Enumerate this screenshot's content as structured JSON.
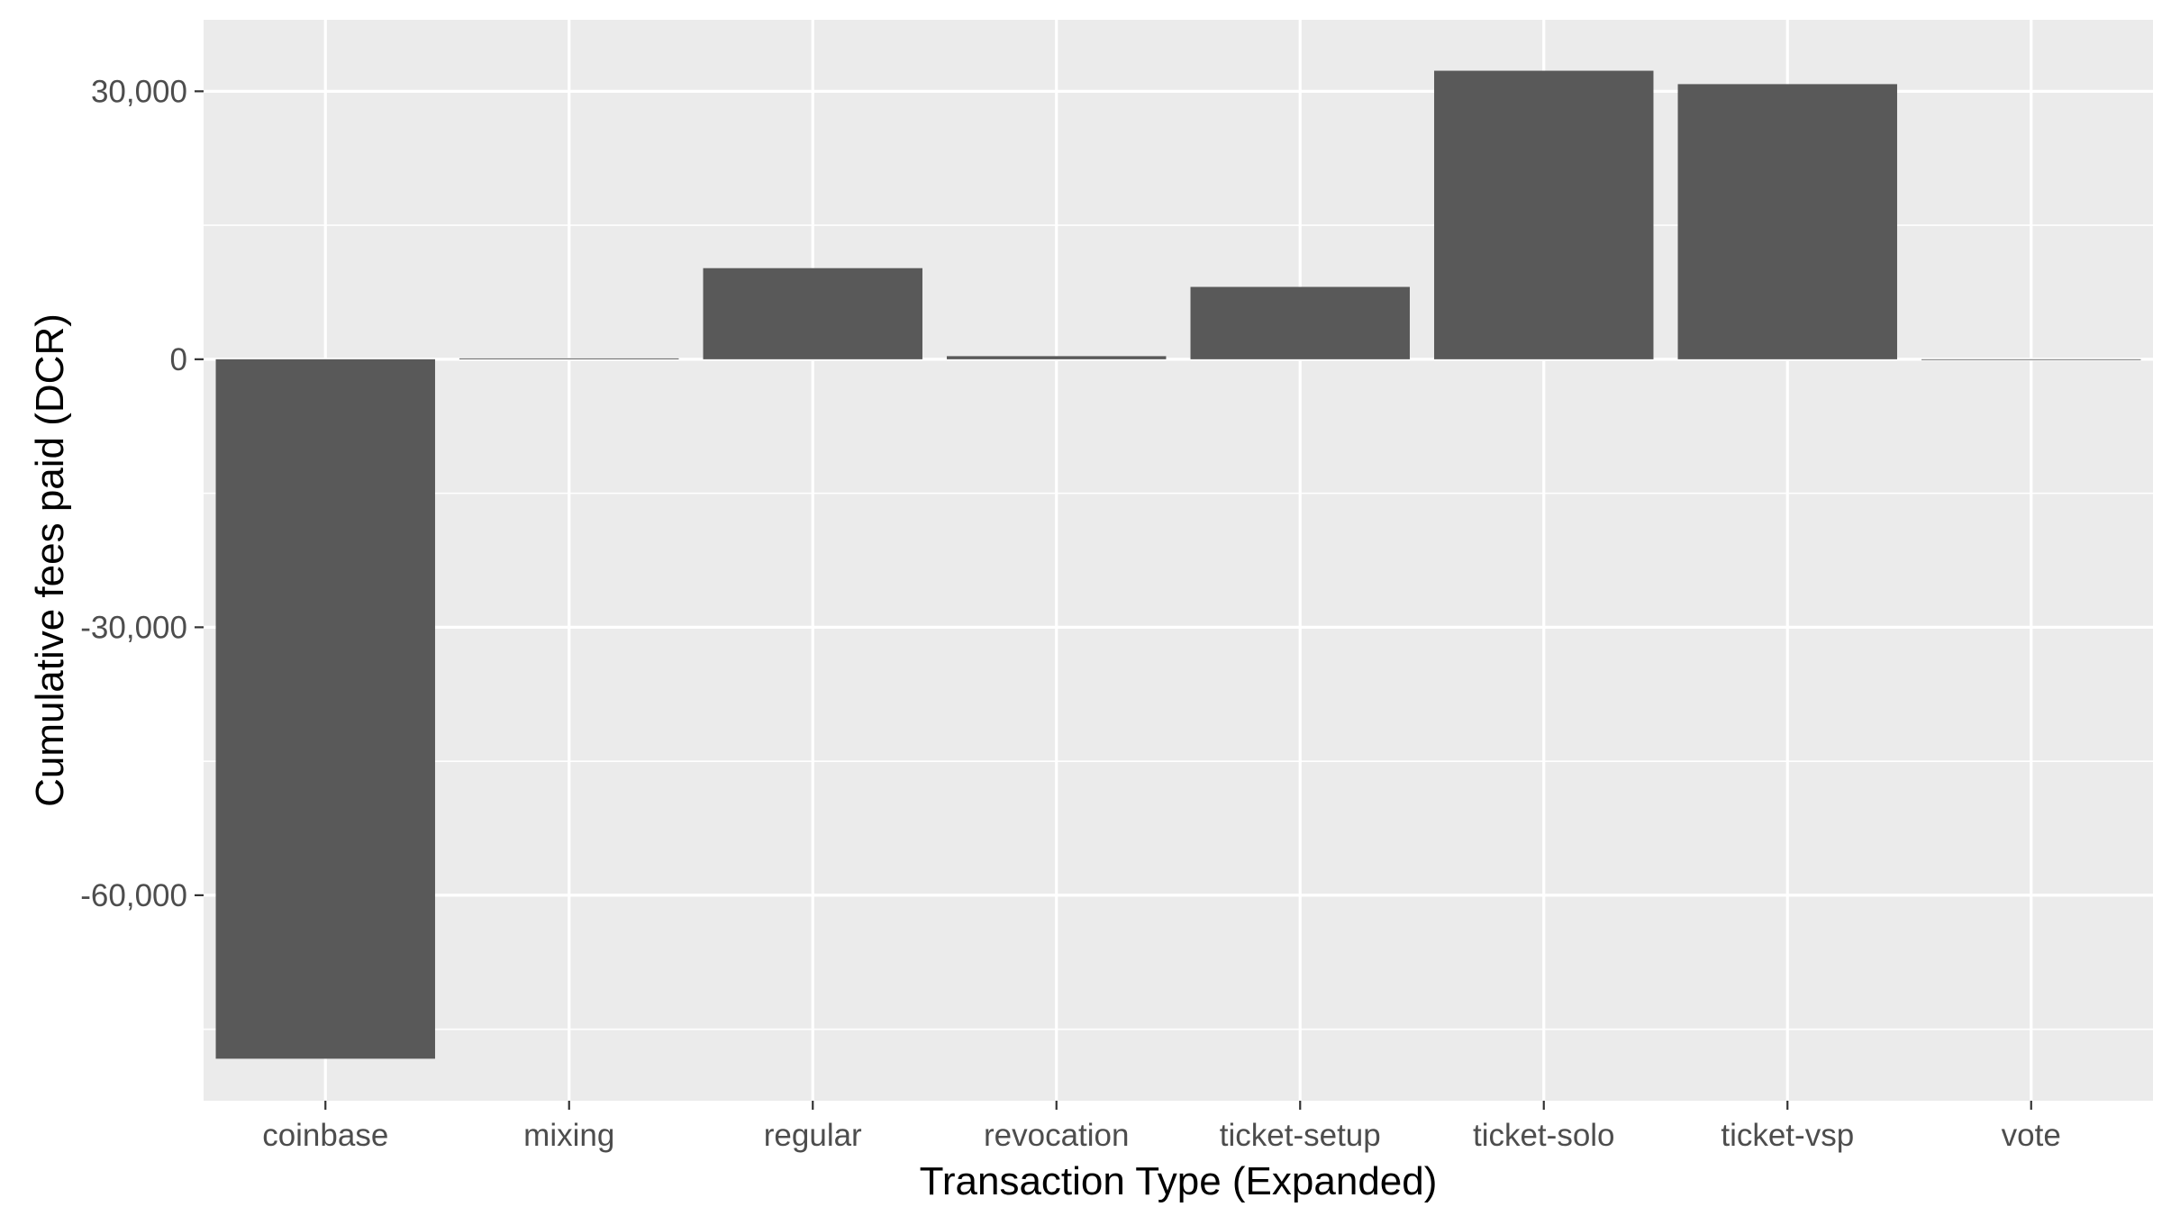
{
  "chart_data": {
    "type": "bar",
    "title": "",
    "xlabel": "Transaction Type (Expanded)",
    "ylabel": "Cumulative fees paid (DCR)",
    "categories": [
      "coinbase",
      "mixing",
      "regular",
      "revocation",
      "ticket-setup",
      "ticket-solo",
      "ticket-vsp",
      "vote"
    ],
    "values": [
      -78300,
      100,
      10200,
      350,
      8100,
      32300,
      30800,
      0
    ],
    "ylim": [
      -83000,
      38000
    ],
    "yticks": [
      -60000,
      -30000,
      0,
      30000
    ],
    "ytick_labels": [
      "-60,000",
      "-30,000",
      "0",
      "30,000"
    ],
    "grid": true,
    "legend": "none",
    "colors": {
      "panel_background": "#EBEBEB",
      "bar_fill": "#595959",
      "grid": "#FFFFFF",
      "tick_label": "#4D4D4D",
      "axis_title": "#000000"
    }
  }
}
